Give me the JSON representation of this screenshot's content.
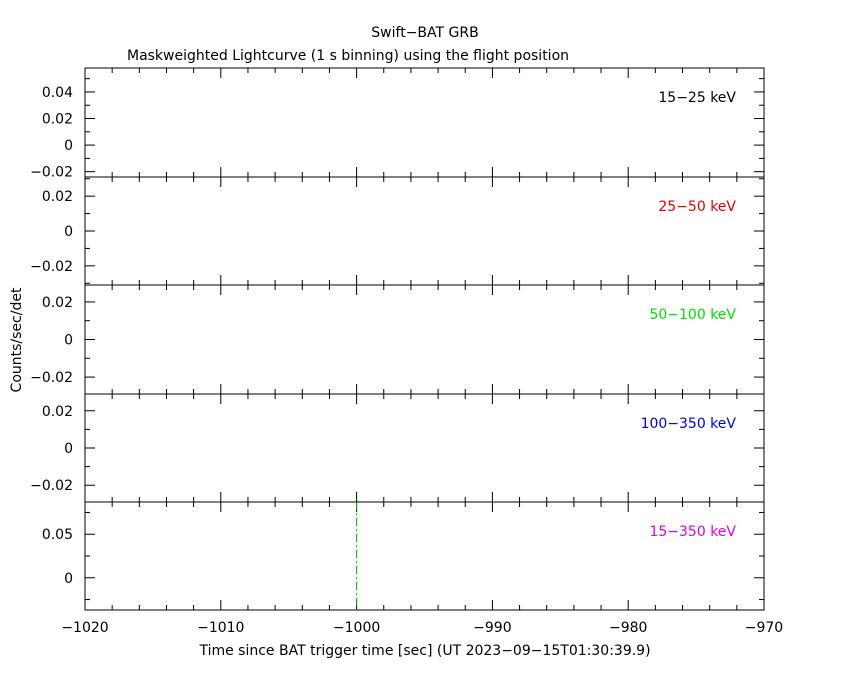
{
  "title": "Swift−BAT GRB",
  "subtitle": "Maskweighted Lightcurve (1 s binning) using the flight position",
  "xlabel": "Time since BAT trigger time [sec] (UT 2023−09−15T01:30:39.9)",
  "ylabel": "Counts/sec/det",
  "colors": {
    "axis": "#000000",
    "trigger_line": "#00b000"
  },
  "chart_data": {
    "type": "line",
    "title": "Swift−BAT GRB",
    "subtitle": "Maskweighted Lightcurve (1 s binning) using the flight position",
    "xlabel": "Time since BAT trigger time [sec] (UT 2023−09−15T01:30:39.9)",
    "ylabel": "Counts/sec/det",
    "xlim": [
      -1020,
      -970
    ],
    "x_ticks": [
      -1020,
      -1010,
      -1000,
      -990,
      -980,
      -970
    ],
    "x_tick_labels": [
      "−1020",
      "−1010",
      "−1000",
      "−990",
      "−980",
      "−970"
    ],
    "grid": false,
    "trigger_marker": {
      "x": -1000,
      "style": "dash-dot",
      "panel": "15−350 keV"
    },
    "panels": [
      {
        "label": "15−25 keV",
        "color": "#000000",
        "ylim": [
          -0.024,
          0.058
        ],
        "y_ticks": [
          -0.02,
          0,
          0.02,
          0.04
        ],
        "y_tick_labels": [
          "−0.02",
          "0",
          "0.02",
          "0.04"
        ],
        "x": [],
        "values": []
      },
      {
        "label": "25−50 keV",
        "color": "#e00000",
        "ylim": [
          -0.031,
          0.031
        ],
        "y_ticks": [
          -0.02,
          0,
          0.02
        ],
        "y_tick_labels": [
          "−0.02",
          "0",
          "0.02"
        ],
        "x": [],
        "values": []
      },
      {
        "label": "50−100 keV",
        "color": "#00e000",
        "ylim": [
          -0.029,
          0.029
        ],
        "y_ticks": [
          -0.02,
          0,
          0.02
        ],
        "y_tick_labels": [
          "−0.02",
          "0",
          "0.02"
        ],
        "x": [],
        "values": []
      },
      {
        "label": "100−350 keV",
        "color": "#0000e0",
        "ylim": [
          -0.029,
          0.029
        ],
        "y_ticks": [
          -0.02,
          0,
          0.02
        ],
        "y_tick_labels": [
          "−0.02",
          "0",
          "0.02"
        ],
        "x": [],
        "values": []
      },
      {
        "label": "15−350 keV",
        "color": "#e000e0",
        "ylim": [
          -0.037,
          0.087
        ],
        "y_ticks": [
          0,
          0.05
        ],
        "y_tick_labels": [
          "0",
          "0.05"
        ],
        "x": [],
        "values": []
      }
    ]
  }
}
